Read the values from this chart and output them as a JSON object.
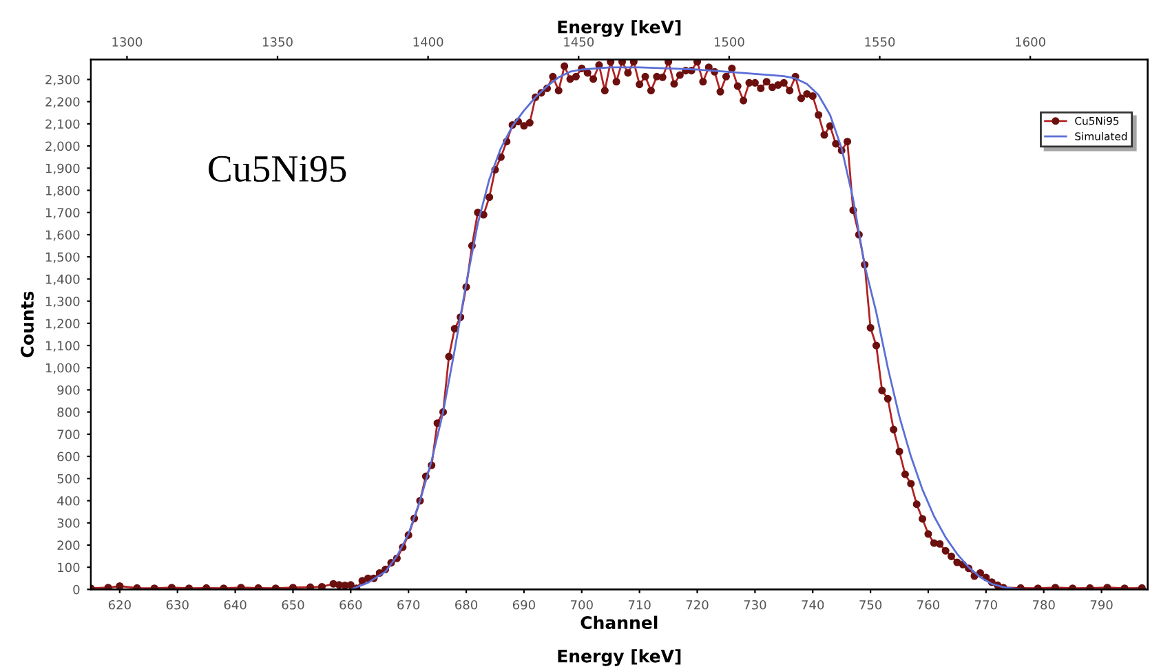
{
  "chart_data": {
    "type": "line",
    "xlabel": "Channel",
    "ylabel": "Counts",
    "x2label": "Energy [keV]",
    "annotations": [
      "Cu5Ni95",
      "Energy [keV]"
    ],
    "series": [
      {
        "name": "Cu5Ni95",
        "color": "#b22222",
        "marker": "circle",
        "x": [
          615,
          618,
          620,
          623,
          626,
          629,
          632,
          635,
          638,
          641,
          644,
          647,
          650,
          653,
          655,
          657,
          658,
          659,
          660,
          661,
          662,
          663,
          664,
          665,
          666,
          667,
          668,
          669,
          670,
          671,
          672,
          673,
          674,
          675,
          676,
          677,
          678,
          679,
          680,
          681,
          682,
          683,
          684,
          685,
          686,
          687,
          688,
          689,
          690,
          691,
          692,
          693,
          694,
          695,
          696,
          697,
          698,
          699,
          700,
          701,
          702,
          703,
          704,
          705,
          706,
          707,
          708,
          709,
          710,
          711,
          712,
          713,
          714,
          715,
          716,
          717,
          718,
          719,
          720,
          721,
          722,
          723,
          724,
          725,
          726,
          727,
          728,
          729,
          730,
          731,
          732,
          733,
          734,
          735,
          736,
          737,
          738,
          739,
          740,
          741,
          742,
          743,
          744,
          745,
          746,
          747,
          748,
          749,
          750,
          751,
          752,
          753,
          754,
          755,
          756,
          757,
          758,
          759,
          760,
          761,
          762,
          763,
          764,
          765,
          766,
          767,
          768,
          769,
          770,
          771,
          772,
          773,
          776,
          779,
          782,
          785,
          788,
          791,
          794,
          797
        ],
        "values": [
          5,
          8,
          15,
          6,
          5,
          8,
          5,
          6,
          5,
          8,
          6,
          5,
          8,
          10,
          12,
          25,
          20,
          18,
          20,
          5,
          39,
          50,
          50,
          74,
          90,
          120,
          140,
          190,
          245,
          320,
          400,
          510,
          560,
          750,
          800,
          1050,
          1176,
          1228,
          1364,
          1550,
          1700,
          1690,
          1769,
          1893,
          1950,
          2020,
          2095,
          2110,
          2091,
          2105,
          2220,
          2240,
          2260,
          2313,
          2250,
          2360,
          2302,
          2313,
          2350,
          2330,
          2302,
          2365,
          2250,
          2380,
          2290,
          2380,
          2330,
          2380,
          2278,
          2313,
          2250,
          2313,
          2310,
          2380,
          2280,
          2320,
          2340,
          2340,
          2380,
          2290,
          2355,
          2335,
          2245,
          2313,
          2350,
          2270,
          2205,
          2285,
          2285,
          2260,
          2290,
          2265,
          2275,
          2285,
          2250,
          2313,
          2215,
          2235,
          2225,
          2140,
          2050,
          2090,
          2010,
          1980,
          2020,
          1710,
          1600,
          1465,
          1180,
          1100,
          897,
          860,
          721,
          622,
          519,
          477,
          384,
          318,
          250,
          209,
          205,
          174,
          149,
          122,
          112,
          95,
          60,
          74,
          54,
          33,
          19,
          8,
          6,
          5,
          8,
          5,
          6,
          8,
          5,
          6
        ]
      },
      {
        "name": "Simulated",
        "color": "#5b6fd6",
        "marker": "none",
        "x": [
          615,
          640,
          660,
          663,
          666,
          668,
          670,
          672,
          674,
          676,
          678,
          680,
          682,
          684,
          686,
          688,
          690,
          692,
          694,
          696,
          698,
          700,
          705,
          710,
          715,
          720,
          725,
          730,
          735,
          737,
          739,
          741,
          743,
          745,
          747,
          749,
          751,
          753,
          755,
          757,
          759,
          761,
          763,
          765,
          767,
          769,
          771,
          773,
          775,
          777,
          798
        ],
        "values": [
          0,
          0,
          0,
          30,
          80,
          150,
          250,
          400,
          580,
          800,
          1080,
          1380,
          1650,
          1850,
          1990,
          2090,
          2160,
          2220,
          2270,
          2310,
          2335,
          2345,
          2355,
          2355,
          2350,
          2345,
          2335,
          2325,
          2315,
          2305,
          2280,
          2230,
          2140,
          1990,
          1760,
          1460,
          1250,
          1000,
          780,
          600,
          450,
          330,
          235,
          160,
          100,
          55,
          25,
          10,
          3,
          0,
          0
        ]
      }
    ],
    "xlim": [
      615,
      798
    ],
    "xticks": [
      620,
      630,
      640,
      650,
      660,
      670,
      680,
      690,
      700,
      710,
      720,
      730,
      740,
      750,
      760,
      770,
      780,
      790
    ],
    "x2lim": [
      1288,
      1639
    ],
    "x2ticks": [
      1300,
      1350,
      1400,
      1450,
      1500,
      1550,
      1600
    ],
    "ylim": [
      0,
      2390
    ],
    "yticks": [
      0,
      100,
      200,
      300,
      400,
      500,
      600,
      700,
      800,
      900,
      {
        "value": 1000,
        "label": "1,000"
      },
      {
        "value": 1100,
        "label": "1,100"
      },
      {
        "value": 1200,
        "label": "1,200"
      },
      {
        "value": 1300,
        "label": "1,300"
      },
      {
        "value": 1400,
        "label": "1,400"
      },
      {
        "value": 1500,
        "label": "1,500"
      },
      {
        "value": 1600,
        "label": "1,600"
      },
      {
        "value": 1700,
        "label": "1,700"
      },
      {
        "value": 1800,
        "label": "1,800"
      },
      {
        "value": 1900,
        "label": "1,900"
      },
      {
        "value": 2000,
        "label": "2,000"
      },
      {
        "value": 2100,
        "label": "2,100"
      },
      {
        "value": 2200,
        "label": "2,200"
      },
      {
        "value": 2300,
        "label": "2,300"
      }
    ],
    "legend": "top right",
    "grid": false,
    "line_style": "solid"
  }
}
